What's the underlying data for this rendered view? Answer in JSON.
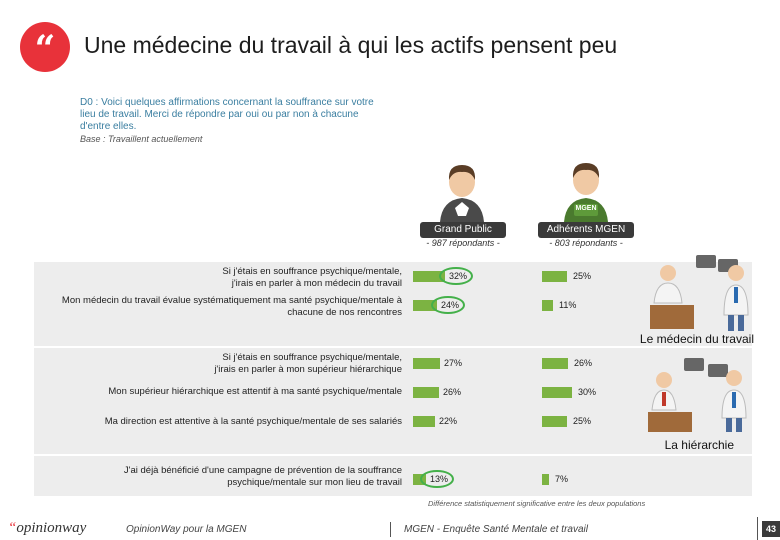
{
  "header": {
    "title": "Une médecine du travail à qui les actifs pensent peu"
  },
  "question": {
    "text": "D0 : Voici quelques affirmations concernant la souffrance sur votre lieu de travail. Merci de répondre par oui ou par non à chacune d'entre elles.",
    "base": "Base : Travaillent actuellement"
  },
  "populations": {
    "gp_label": "Grand Public",
    "gp_sub": "- 987 répondants -",
    "mgen_label": "Adhérents MGEN",
    "mgen_sub": "- 803 répondants -",
    "mgen_badge": "MGEN"
  },
  "sections": {
    "medecin": "Le médecin du travail",
    "hierarchie": "La hiérarchie"
  },
  "chart_data": {
    "type": "bar",
    "categories": [
      "Si j'étais en souffrance psychique/mentale, j'irais en parler à mon médecin du travail",
      "Mon médecin du travail évalue systématiquement ma santé psychique/mentale à chacune de nos rencontres",
      "Si j'étais en souffrance psychique/mentale, j'irais en parler à mon supérieur hiérarchique",
      "Mon supérieur hiérarchique est attentif à ma santé psychique/mentale",
      "Ma direction est attentive à la santé psychique/mentale de ses salariés",
      "J'ai déjà bénéficié d'une campagne de prévention de la souffrance psychique/mentale sur mon lieu de travail"
    ],
    "series": [
      {
        "name": "Grand Public",
        "values": [
          32,
          24,
          27,
          26,
          22,
          13
        ],
        "labels": [
          "32%",
          "24%",
          "27%",
          "26%",
          "22%",
          "13%"
        ],
        "significant": [
          true,
          true,
          false,
          false,
          false,
          true
        ]
      },
      {
        "name": "Adhérents MGEN",
        "values": [
          25,
          11,
          26,
          30,
          25,
          7
        ],
        "labels": [
          "25%",
          "11%",
          "26%",
          "30%",
          "25%",
          "7%"
        ]
      }
    ],
    "ylim": [
      0,
      100
    ]
  },
  "footnote": "Différence statistiquement significative entre les deux populations",
  "footer": {
    "logo_prefix": "“",
    "logo_brand": "opinionway",
    "left": "OpinionWay pour la MGEN",
    "mid": "MGEN - Enquête Santé Mentale et travail",
    "page": "43"
  },
  "colors": {
    "accent": "#e8323a",
    "bar": "#7cb342",
    "significance_ring": "#44b04a",
    "label_bg": "#3a3a3a"
  }
}
